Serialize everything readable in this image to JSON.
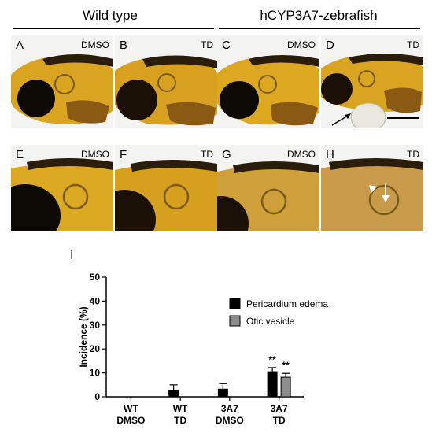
{
  "headers": {
    "wild_type": "Wild type",
    "transgenic": "hCYP3A7-zebrafish"
  },
  "panels": [
    {
      "letter": "A",
      "condition": "DMSO"
    },
    {
      "letter": "B",
      "condition": "TD"
    },
    {
      "letter": "C",
      "condition": "DMSO"
    },
    {
      "letter": "D",
      "condition": "TD"
    },
    {
      "letter": "E",
      "condition": "DMSO"
    },
    {
      "letter": "F",
      "condition": "TD"
    },
    {
      "letter": "G",
      "condition": "DMSO"
    },
    {
      "letter": "H",
      "condition": "TD"
    }
  ],
  "chart_label": "I",
  "chart_data": {
    "type": "bar",
    "categories": [
      [
        "WT",
        "DMSO"
      ],
      [
        "WT",
        "TD"
      ],
      [
        "3A7",
        "DMSO"
      ],
      [
        "3A7",
        "TD"
      ]
    ],
    "series": [
      {
        "name": "Pericardium edema",
        "color": "#000000",
        "values": [
          0,
          2.5,
          3.2,
          10.5
        ],
        "errors": [
          0,
          2.5,
          2.3,
          1.7
        ]
      },
      {
        "name": "Otic vesicle",
        "color": "#8c8c8c",
        "values": [
          0,
          0,
          0,
          8.2
        ],
        "errors": [
          0,
          0,
          0,
          1.6
        ]
      }
    ],
    "ylabel": "Incidence  (%)",
    "ylim": [
      0,
      50
    ],
    "yticks": [
      "0",
      "10",
      "20",
      "30",
      "40",
      "50"
    ],
    "significance": [
      {
        "category": 3,
        "series": 0,
        "text": "**"
      },
      {
        "category": 3,
        "series": 1,
        "text": "**"
      }
    ],
    "legend_position": "top-right",
    "grid": false
  }
}
